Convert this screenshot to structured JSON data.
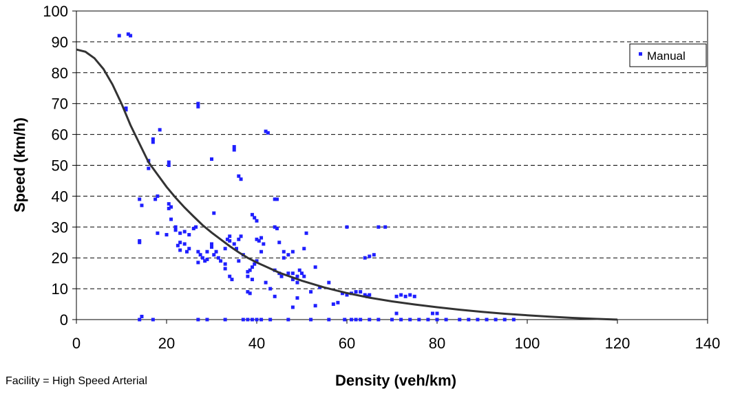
{
  "footnote": "Facility = High Speed Arterial",
  "chart_data": {
    "type": "scatter",
    "title": "",
    "xlabel": "Density (veh/km)",
    "ylabel": "Speed (km/h)",
    "xlim": [
      0,
      140
    ],
    "ylim": [
      0,
      100
    ],
    "xticks": [
      0,
      20,
      40,
      60,
      80,
      100,
      120,
      140
    ],
    "yticks": [
      0,
      10,
      20,
      30,
      40,
      50,
      60,
      70,
      80,
      90,
      100
    ],
    "grid": "horizontal dashed",
    "legend_position": "top-right",
    "series": [
      {
        "name": "Manual",
        "kind": "points",
        "color": "#1f1fff",
        "points": [
          [
            9.5,
            92
          ],
          [
            11.5,
            92.5
          ],
          [
            12,
            92
          ],
          [
            11,
            68
          ],
          [
            11,
            68.5
          ],
          [
            27,
            69
          ],
          [
            27,
            70
          ],
          [
            18.5,
            61.5
          ],
          [
            42,
            61
          ],
          [
            42.5,
            60.5
          ],
          [
            35,
            56
          ],
          [
            35,
            55
          ],
          [
            30,
            52
          ],
          [
            16,
            51.5
          ],
          [
            20.5,
            51
          ],
          [
            20.5,
            50
          ],
          [
            16,
            49
          ],
          [
            36,
            46.5
          ],
          [
            36.5,
            45.5
          ],
          [
            17,
            58.5
          ],
          [
            17,
            57.5
          ],
          [
            17.5,
            39
          ],
          [
            18,
            40
          ],
          [
            14,
            39
          ],
          [
            14.5,
            37
          ],
          [
            20.5,
            37.5
          ],
          [
            21,
            36.5
          ],
          [
            20.5,
            36
          ],
          [
            39,
            34
          ],
          [
            44,
            39
          ],
          [
            44.5,
            39
          ],
          [
            39.5,
            33
          ],
          [
            30.5,
            34.5
          ],
          [
            40,
            32
          ],
          [
            21,
            32.5
          ],
          [
            14,
            25.5
          ],
          [
            14,
            25
          ],
          [
            18,
            28
          ],
          [
            20,
            27.5
          ],
          [
            22,
            30
          ],
          [
            22,
            29
          ],
          [
            23,
            28
          ],
          [
            24,
            28.5
          ],
          [
            25,
            27.5
          ],
          [
            26,
            29.5
          ],
          [
            26.5,
            30
          ],
          [
            23,
            25
          ],
          [
            24,
            24.5
          ],
          [
            25,
            23
          ],
          [
            22.5,
            24
          ],
          [
            23,
            22.5
          ],
          [
            24.5,
            22
          ],
          [
            27,
            22
          ],
          [
            27.5,
            21
          ],
          [
            28,
            20
          ],
          [
            28.5,
            19
          ],
          [
            29,
            22
          ],
          [
            30,
            24.5
          ],
          [
            30,
            23.5
          ],
          [
            31,
            22
          ],
          [
            30.5,
            21
          ],
          [
            31.5,
            20
          ],
          [
            32,
            19
          ],
          [
            29,
            19.5
          ],
          [
            27,
            18.5
          ],
          [
            33,
            23
          ],
          [
            33.5,
            26
          ],
          [
            34,
            27
          ],
          [
            34,
            25.5
          ],
          [
            35,
            24.5
          ],
          [
            35.5,
            23
          ],
          [
            36,
            26
          ],
          [
            36.5,
            27
          ],
          [
            37,
            21
          ],
          [
            36,
            19
          ],
          [
            33,
            18
          ],
          [
            33,
            16.5
          ],
          [
            34,
            14
          ],
          [
            34.5,
            13
          ],
          [
            38,
            15.5
          ],
          [
            38.5,
            16
          ],
          [
            39,
            17
          ],
          [
            39.5,
            18
          ],
          [
            40,
            19
          ],
          [
            38,
            14
          ],
          [
            39,
            13
          ],
          [
            38,
            9
          ],
          [
            38.5,
            8.5
          ],
          [
            40,
            26
          ],
          [
            40.5,
            25.5
          ],
          [
            41,
            26.5
          ],
          [
            41.5,
            24.5
          ],
          [
            41,
            22
          ],
          [
            44,
            30
          ],
          [
            44.5,
            29.5
          ],
          [
            45,
            25
          ],
          [
            46,
            22
          ],
          [
            46,
            20
          ],
          [
            47,
            21
          ],
          [
            48,
            22
          ],
          [
            44,
            16
          ],
          [
            45,
            15
          ],
          [
            45.5,
            14
          ],
          [
            47,
            15
          ],
          [
            48,
            15
          ],
          [
            49,
            14
          ],
          [
            49.5,
            16
          ],
          [
            50,
            15
          ],
          [
            50.5,
            14
          ],
          [
            48,
            13
          ],
          [
            49,
            12
          ],
          [
            51,
            28
          ],
          [
            50.5,
            23
          ],
          [
            53,
            17
          ],
          [
            56,
            12
          ],
          [
            54,
            10.5
          ],
          [
            52,
            9
          ],
          [
            49,
            7
          ],
          [
            44,
            7.5
          ],
          [
            43,
            10
          ],
          [
            42,
            12
          ],
          [
            48,
            4
          ],
          [
            53,
            4.5
          ],
          [
            57,
            5
          ],
          [
            58,
            5.5
          ],
          [
            60,
            30
          ],
          [
            59,
            8.5
          ],
          [
            60,
            8
          ],
          [
            61,
            8.5
          ],
          [
            62,
            9
          ],
          [
            63,
            9
          ],
          [
            64,
            8
          ],
          [
            64.5,
            7.5
          ],
          [
            65,
            8
          ],
          [
            64,
            20
          ],
          [
            65,
            20.5
          ],
          [
            66,
            21
          ],
          [
            67,
            30
          ],
          [
            68.5,
            30
          ],
          [
            72,
            8
          ],
          [
            73,
            7.5
          ],
          [
            74,
            8
          ],
          [
            75,
            7.5
          ],
          [
            71,
            7.5
          ],
          [
            71,
            2
          ],
          [
            79,
            2
          ],
          [
            80,
            2
          ],
          [
            14.5,
            1
          ],
          [
            14,
            0
          ],
          [
            17,
            0
          ],
          [
            27,
            0
          ],
          [
            29,
            0
          ],
          [
            33,
            0
          ],
          [
            37,
            0
          ],
          [
            38,
            0
          ],
          [
            39,
            0
          ],
          [
            40,
            0
          ],
          [
            41,
            0
          ],
          [
            43,
            0
          ],
          [
            47,
            0
          ],
          [
            52,
            0
          ],
          [
            56,
            0
          ],
          [
            59.5,
            0
          ],
          [
            61,
            0
          ],
          [
            62,
            0
          ],
          [
            63,
            0
          ],
          [
            65,
            0
          ],
          [
            67,
            0
          ],
          [
            70,
            0
          ],
          [
            72,
            0
          ],
          [
            74,
            0
          ],
          [
            76,
            0
          ],
          [
            78,
            0
          ],
          [
            80,
            0
          ],
          [
            82,
            0
          ],
          [
            85,
            0
          ],
          [
            87,
            0
          ],
          [
            89,
            0
          ],
          [
            91,
            0
          ],
          [
            93,
            0
          ],
          [
            95,
            0
          ],
          [
            97,
            0
          ]
        ]
      },
      {
        "name": "",
        "kind": "curve",
        "color": "#333333",
        "points": [
          [
            0,
            87.5
          ],
          [
            2,
            86.8
          ],
          [
            4,
            84.7
          ],
          [
            6,
            81.2
          ],
          [
            8,
            76.2
          ],
          [
            10,
            70
          ],
          [
            12,
            63
          ],
          [
            14,
            57
          ],
          [
            16,
            51
          ],
          [
            18,
            47
          ],
          [
            20,
            43
          ],
          [
            22,
            39.5
          ],
          [
            24,
            36.3
          ],
          [
            26,
            33.4
          ],
          [
            28,
            30.6
          ],
          [
            30,
            28.2
          ],
          [
            32,
            26
          ],
          [
            34,
            23.8
          ],
          [
            36,
            21.8
          ],
          [
            38,
            20
          ],
          [
            40,
            18.5
          ],
          [
            45,
            15.2
          ],
          [
            50,
            12.6
          ],
          [
            55,
            10.4
          ],
          [
            60,
            8.6
          ],
          [
            65,
            7.1
          ],
          [
            70,
            5.9
          ],
          [
            75,
            4.9
          ],
          [
            80,
            4
          ],
          [
            85,
            3.2
          ],
          [
            90,
            2.5
          ],
          [
            95,
            1.9
          ],
          [
            100,
            1.4
          ],
          [
            105,
            0.95
          ],
          [
            110,
            0.55
          ],
          [
            115,
            0.25
          ],
          [
            120,
            0
          ]
        ]
      }
    ]
  }
}
